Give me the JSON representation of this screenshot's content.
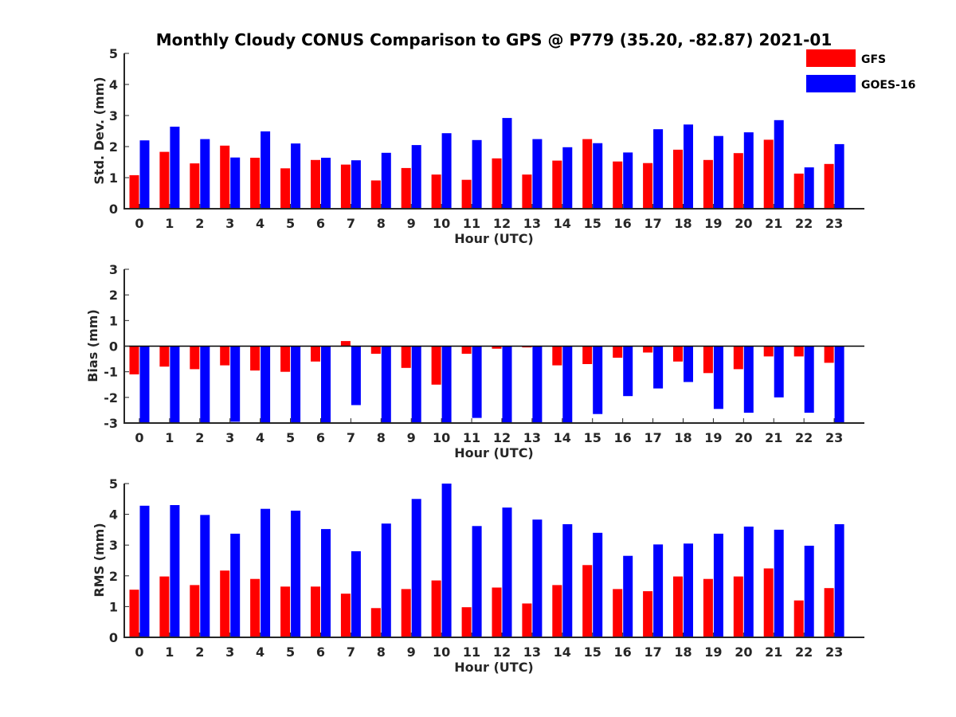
{
  "title": "Monthly Cloudy CONUS Comparison to GPS @ P779 (35.20, -82.87) 2021-01",
  "legend": [
    {
      "name": "GFS",
      "color": "#ff0000"
    },
    {
      "name": "GOES-16",
      "color": "#0000ff"
    }
  ],
  "chart_data": [
    {
      "type": "bar",
      "ylabel": "Std. Dev. (mm)",
      "xlabel": "Hour (UTC)",
      "ylim": [
        0,
        5
      ],
      "yticks": [
        0,
        1,
        2,
        3,
        4,
        5
      ],
      "categories": [
        "0",
        "1",
        "2",
        "3",
        "4",
        "5",
        "6",
        "7",
        "8",
        "9",
        "10",
        "11",
        "12",
        "13",
        "14",
        "15",
        "16",
        "17",
        "18",
        "19",
        "20",
        "21",
        "22",
        "23"
      ],
      "series": [
        {
          "name": "GFS",
          "color": "#ff0000",
          "values": [
            1.08,
            1.83,
            1.46,
            2.03,
            1.64,
            1.3,
            1.57,
            1.42,
            0.91,
            1.31,
            1.1,
            0.93,
            1.62,
            1.1,
            1.55,
            2.24,
            1.52,
            1.47,
            1.9,
            1.57,
            1.79,
            2.22,
            1.13,
            1.44
          ]
        },
        {
          "name": "GOES-16",
          "color": "#0000ff",
          "values": [
            2.2,
            2.64,
            2.24,
            1.65,
            2.49,
            2.1,
            1.64,
            1.56,
            1.8,
            2.05,
            2.43,
            2.21,
            2.92,
            2.24,
            1.98,
            2.11,
            1.81,
            2.56,
            2.71,
            2.34,
            2.46,
            2.85,
            1.33,
            2.08
          ]
        }
      ]
    },
    {
      "type": "bar",
      "ylabel": "Bias (mm)",
      "xlabel": "Hour (UTC)",
      "ylim": [
        -3,
        3
      ],
      "yticks": [
        -3,
        -2,
        -1,
        0,
        1,
        2,
        3
      ],
      "categories": [
        "0",
        "1",
        "2",
        "3",
        "4",
        "5",
        "6",
        "7",
        "8",
        "9",
        "10",
        "11",
        "12",
        "13",
        "14",
        "15",
        "16",
        "17",
        "18",
        "19",
        "20",
        "21",
        "22",
        "23"
      ],
      "series": [
        {
          "name": "GFS",
          "color": "#ff0000",
          "values": [
            -1.1,
            -0.8,
            -0.9,
            -0.75,
            -0.95,
            -1.0,
            -0.6,
            0.2,
            -0.3,
            -0.85,
            -1.5,
            -0.3,
            -0.1,
            -0.05,
            -0.75,
            -0.7,
            -0.45,
            -0.25,
            -0.6,
            -1.05,
            -0.9,
            -0.4,
            -0.4,
            -0.65
          ]
        },
        {
          "name": "GOES-16",
          "color": "#0000ff",
          "values": [
            -3.0,
            -3.0,
            -3.0,
            -2.95,
            -3.0,
            -3.0,
            -3.0,
            -2.3,
            -3.0,
            -3.0,
            -3.0,
            -2.8,
            -3.0,
            -3.0,
            -3.0,
            -2.65,
            -1.95,
            -1.65,
            -1.4,
            -2.45,
            -2.6,
            -2.0,
            -2.6,
            -3.0
          ]
        }
      ]
    },
    {
      "type": "bar",
      "ylabel": "RMS (mm)",
      "xlabel": "Hour (UTC)",
      "ylim": [
        0,
        5
      ],
      "yticks": [
        0,
        1,
        2,
        3,
        4,
        5
      ],
      "categories": [
        "0",
        "1",
        "2",
        "3",
        "4",
        "5",
        "6",
        "7",
        "8",
        "9",
        "10",
        "11",
        "12",
        "13",
        "14",
        "15",
        "16",
        "17",
        "18",
        "19",
        "20",
        "21",
        "22",
        "23"
      ],
      "series": [
        {
          "name": "GFS",
          "color": "#ff0000",
          "values": [
            1.55,
            1.98,
            1.7,
            2.17,
            1.9,
            1.65,
            1.65,
            1.42,
            0.95,
            1.57,
            1.85,
            0.98,
            1.62,
            1.1,
            1.7,
            2.35,
            1.57,
            1.5,
            1.98,
            1.9,
            1.98,
            2.24,
            1.2,
            1.6
          ]
        },
        {
          "name": "GOES-16",
          "color": "#0000ff",
          "values": [
            4.28,
            4.3,
            3.98,
            3.37,
            4.18,
            4.12,
            3.52,
            2.8,
            3.7,
            4.5,
            5.0,
            3.62,
            4.22,
            3.83,
            3.68,
            3.4,
            2.65,
            3.02,
            3.05,
            3.37,
            3.6,
            3.5,
            2.98,
            3.68
          ]
        }
      ]
    }
  ]
}
